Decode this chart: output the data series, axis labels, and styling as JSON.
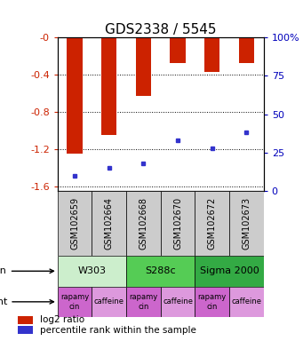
{
  "title": "GDS2338 / 5545",
  "samples": [
    "GSM102659",
    "GSM102664",
    "GSM102668",
    "GSM102670",
    "GSM102672",
    "GSM102673"
  ],
  "log2_ratios": [
    -1.25,
    -1.05,
    -0.63,
    -0.27,
    -0.37,
    -0.27
  ],
  "percentile_ranks": [
    10,
    15,
    18,
    33,
    28,
    38
  ],
  "ylim_left": [
    -1.65,
    0.0
  ],
  "ylim_right": [
    0,
    100
  ],
  "left_yticks": [
    0,
    -0.4,
    -0.8,
    -1.2,
    -1.6
  ],
  "right_yticks": [
    0,
    25,
    50,
    75,
    100
  ],
  "left_ytick_labels": [
    "-0",
    "-0.4",
    "-0.8",
    "-1.2",
    "-1.6"
  ],
  "right_ytick_labels": [
    "0",
    "25",
    "50",
    "75",
    "100%"
  ],
  "bar_color": "#CC2200",
  "dot_color": "#3333CC",
  "strains": [
    {
      "label": "W303",
      "span": [
        0,
        2
      ],
      "color": "#CCEECC"
    },
    {
      "label": "S288c",
      "span": [
        2,
        4
      ],
      "color": "#55CC55"
    },
    {
      "label": "Sigma 2000",
      "span": [
        4,
        6
      ],
      "color": "#33AA44"
    }
  ],
  "agents": [
    {
      "label": "rapamycin",
      "span": [
        0,
        1
      ],
      "color": "#CC66CC"
    },
    {
      "label": "caffeine",
      "span": [
        1,
        2
      ],
      "color": "#DD99DD"
    },
    {
      "label": "rapamycin",
      "span": [
        2,
        3
      ],
      "color": "#CC66CC"
    },
    {
      "label": "caffeine",
      "span": [
        3,
        4
      ],
      "color": "#DD99DD"
    },
    {
      "label": "rapamycin",
      "span": [
        4,
        5
      ],
      "color": "#CC66CC"
    },
    {
      "label": "caffeine",
      "span": [
        5,
        6
      ],
      "color": "#DD99DD"
    }
  ],
  "legend_items": [
    {
      "label": "log2 ratio",
      "color": "#CC2200"
    },
    {
      "label": "percentile rank within the sample",
      "color": "#3333CC"
    }
  ],
  "bar_width": 0.45,
  "axis_label_color_left": "#CC2200",
  "axis_label_color_right": "#0000BB",
  "sample_box_color": "#CCCCCC"
}
